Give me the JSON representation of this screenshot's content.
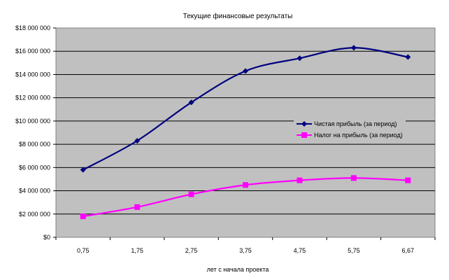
{
  "chart_data": {
    "type": "line",
    "title": "Текущие финансовые результаты",
    "xlabel": "лет с начала проекта",
    "ylabel": "",
    "categories": [
      "0,75",
      "1,75",
      "2,75",
      "3,75",
      "4,75",
      "5,75",
      "6,67"
    ],
    "y_ticks": [
      "$0",
      "$2 000 000",
      "$4 000 000",
      "$6 000 000",
      "$8 000 000",
      "$10 000 000",
      "$12 000 000",
      "$14 000 000",
      "$16 000 000",
      "$18 000 000"
    ],
    "ylim": [
      0,
      18000000
    ],
    "grid": true,
    "legend_position": "right",
    "plot_background": "#c0c0c0",
    "series": [
      {
        "name": "Чистая прибыль (за период)",
        "color": "#000080",
        "marker": "diamond",
        "values": [
          5800000,
          8300000,
          11600000,
          14300000,
          15400000,
          16300000,
          15500000
        ]
      },
      {
        "name": "Налог на прибыль (за период)",
        "color": "#ff00ff",
        "marker": "square",
        "values": [
          1800000,
          2600000,
          3700000,
          4500000,
          4900000,
          5100000,
          4900000
        ]
      }
    ]
  }
}
